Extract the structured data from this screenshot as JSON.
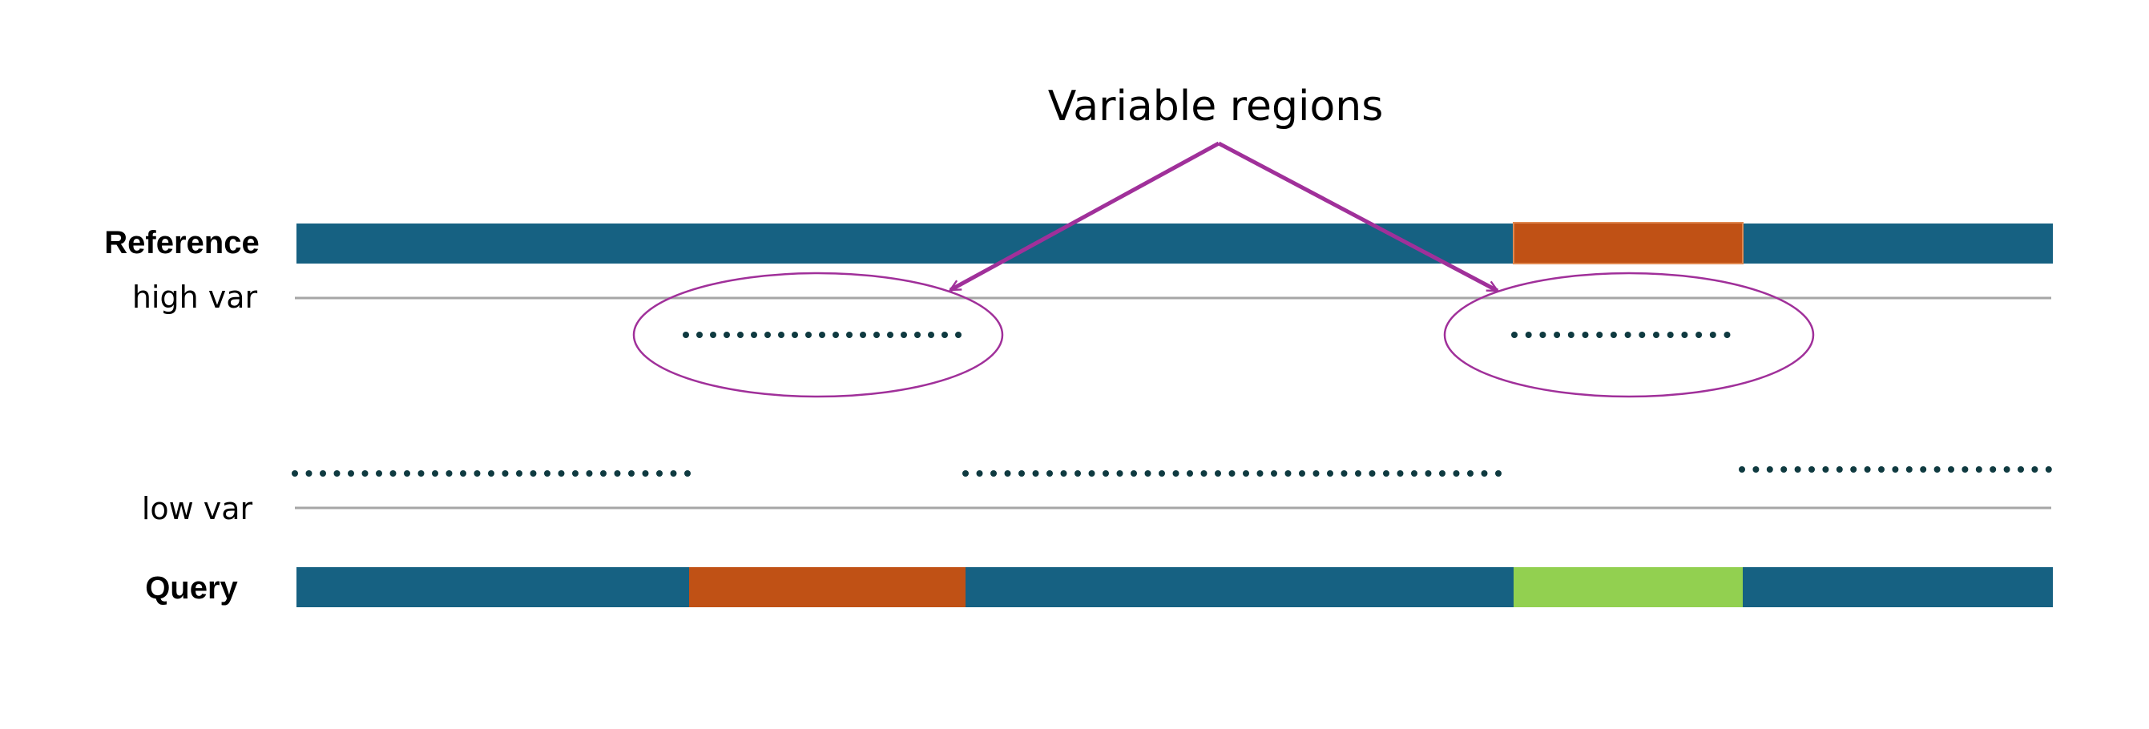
{
  "labels": {
    "reference": "Reference",
    "query": "Query",
    "high_var": "high var",
    "low_var": "low var",
    "annotation": "Variable regions"
  },
  "colors": {
    "bar": "#166182",
    "orange": "#C05115",
    "green": "#92D050",
    "dots": "#0F3A40",
    "annotation": "#A0309A",
    "guide_line": "#A6A6A6"
  }
}
